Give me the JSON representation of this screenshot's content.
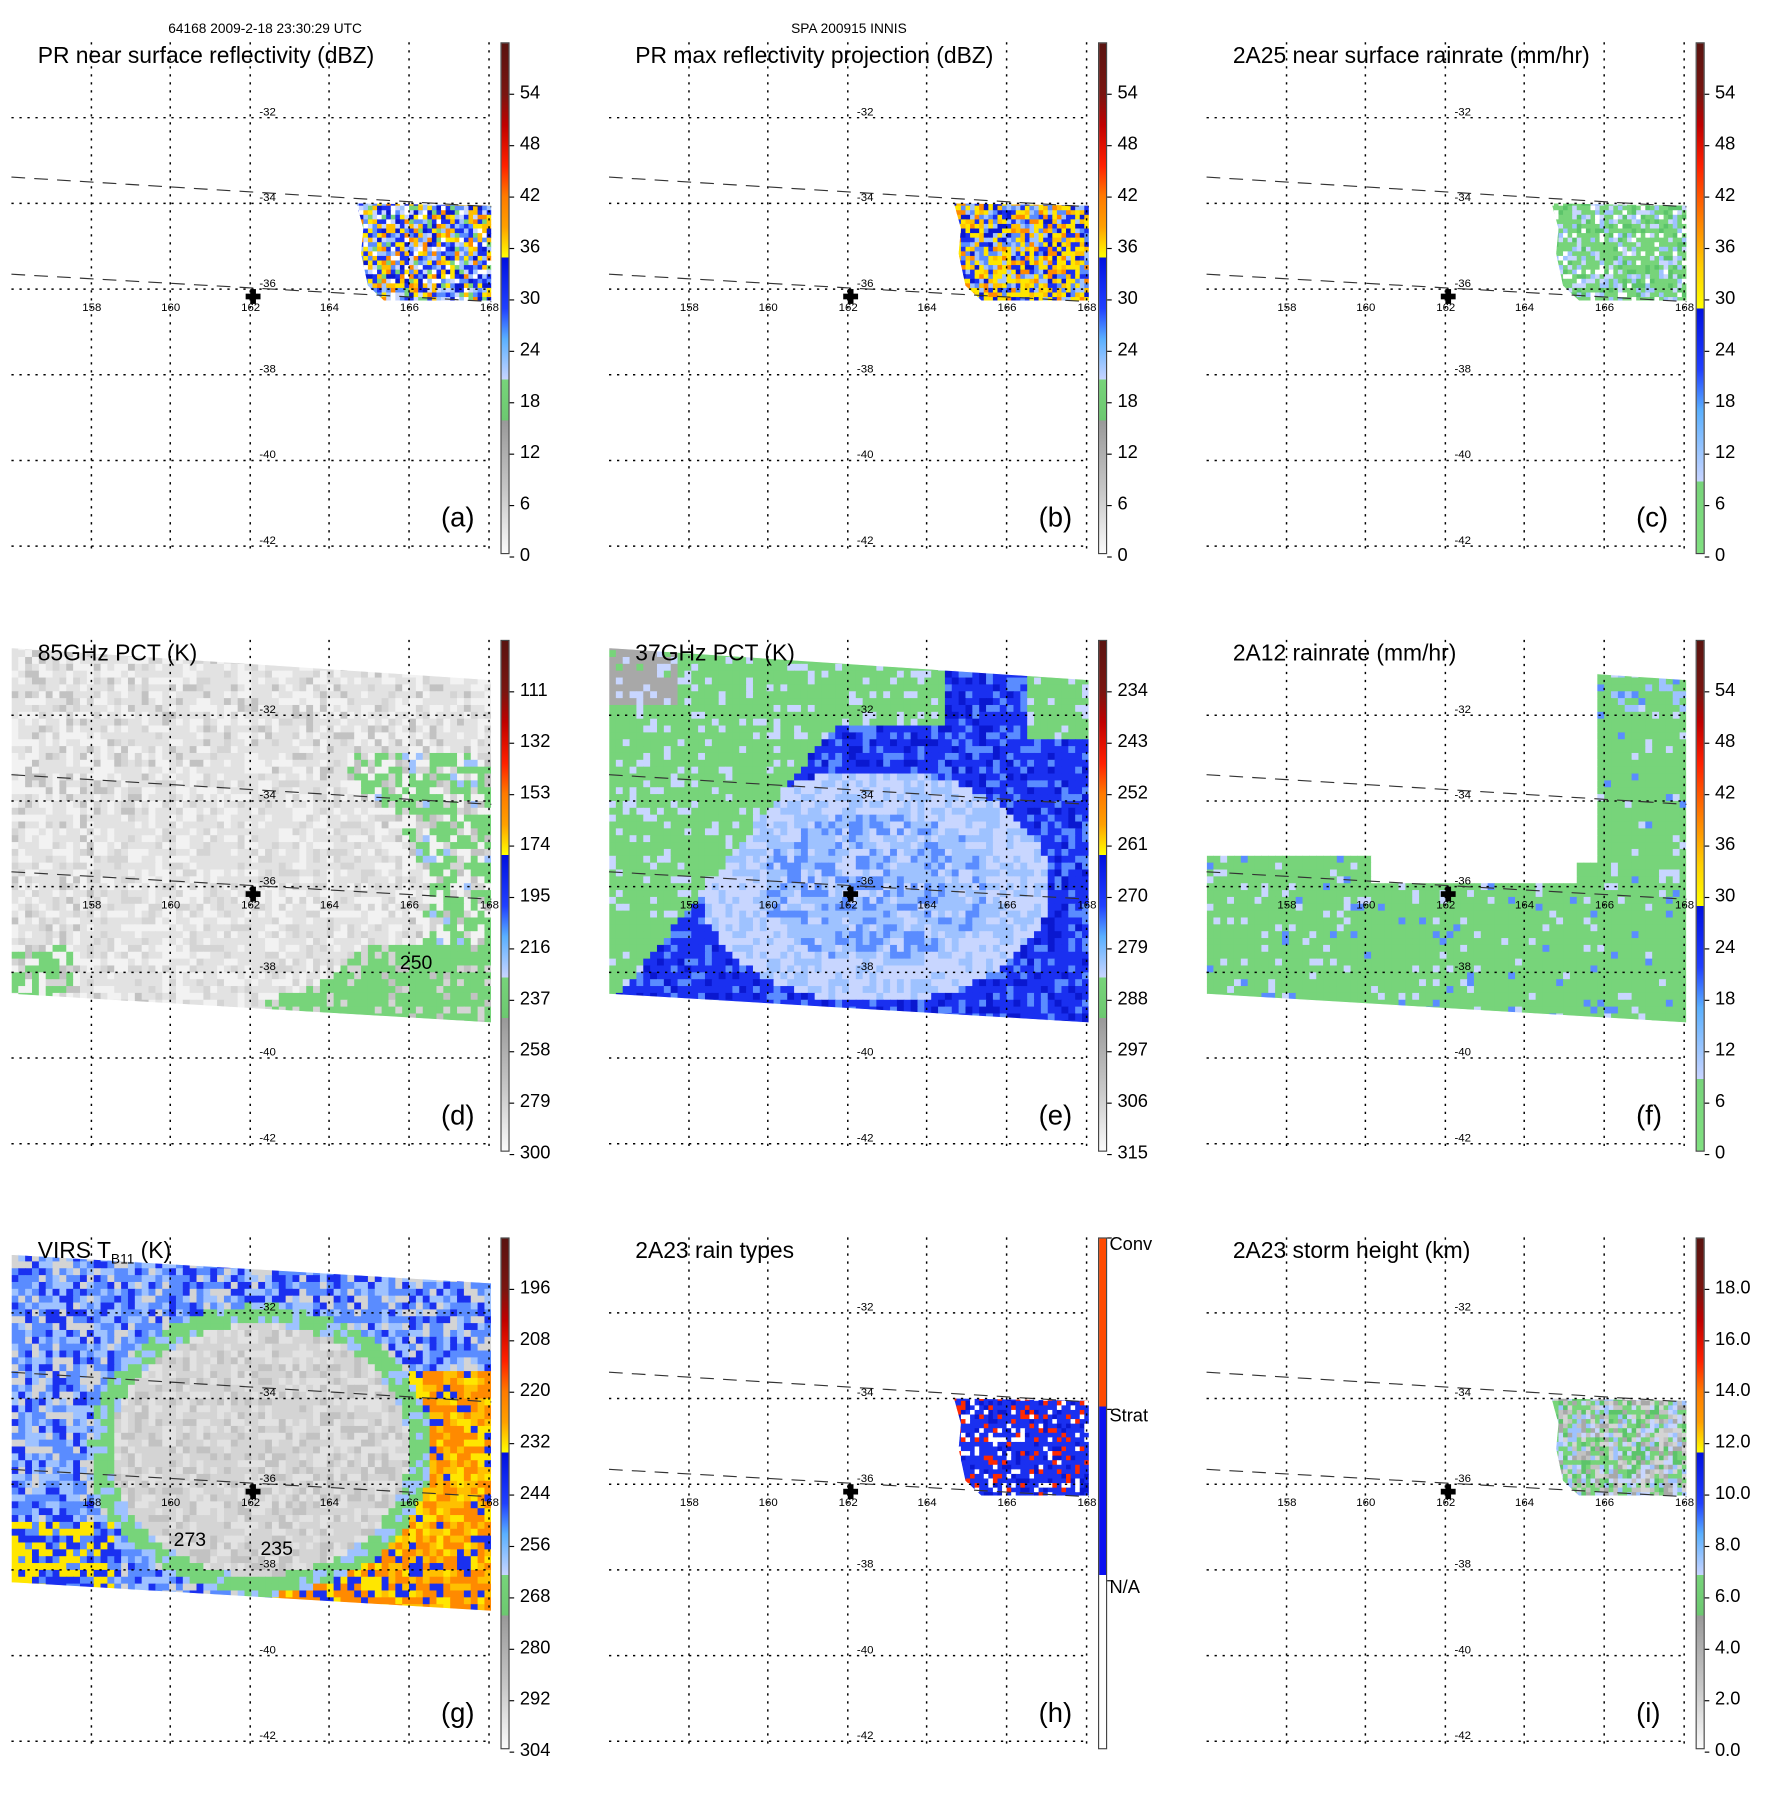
{
  "header": {
    "orbit_time": "64168 2009-2-18 23:30:29 UTC",
    "storm": "SPA 200915 INNIS"
  },
  "grid": {
    "lat_labels": [
      "-32",
      "-34",
      "-36",
      "-38",
      "-40",
      "-42"
    ],
    "lon_labels": [
      "158",
      "160",
      "162",
      "164",
      "166",
      "168"
    ]
  },
  "panels": [
    {
      "id": "a",
      "title": "PR near surface reflectivity (dBZ)",
      "letter": "(a)",
      "colorbar_labels": [
        "54",
        "48",
        "42",
        "36",
        "30",
        "24",
        "18",
        "12",
        "6",
        "0"
      ],
      "contour_labels": []
    },
    {
      "id": "b",
      "title": "PR max reflectivity projection (dBZ)",
      "letter": "(b)",
      "colorbar_labels": [
        "54",
        "48",
        "42",
        "36",
        "30",
        "24",
        "18",
        "12",
        "6",
        "0"
      ],
      "contour_labels": []
    },
    {
      "id": "c",
      "title": "2A25 near surface rainrate (mm/hr)",
      "letter": "(c)",
      "colorbar_labels": [
        "54",
        "48",
        "42",
        "36",
        "30",
        "24",
        "18",
        "12",
        "6",
        "0"
      ],
      "contour_labels": []
    },
    {
      "id": "d",
      "title": "85GHz PCT (K)",
      "letter": "(d)",
      "colorbar_labels": [
        "111",
        "132",
        "153",
        "174",
        "195",
        "216",
        "237",
        "258",
        "279",
        "300"
      ],
      "contour_labels": [
        "250"
      ]
    },
    {
      "id": "e",
      "title": "37GHz PCT (K)",
      "letter": "(e)",
      "colorbar_labels": [
        "234",
        "243",
        "252",
        "261",
        "270",
        "279",
        "288",
        "297",
        "306",
        "315"
      ],
      "contour_labels": []
    },
    {
      "id": "f",
      "title": "2A12 rainrate (mm/hr)",
      "letter": "(f)",
      "colorbar_labels": [
        "54",
        "48",
        "42",
        "36",
        "30",
        "24",
        "18",
        "12",
        "6",
        "0"
      ],
      "contour_labels": []
    },
    {
      "id": "g",
      "title": "VIRS T",
      "title_sub": "B11",
      "title_suffix": " (K)",
      "letter": "(g)",
      "colorbar_labels": [
        "196",
        "208",
        "220",
        "232",
        "244",
        "256",
        "268",
        "280",
        "292",
        "304"
      ],
      "contour_labels": [
        "273",
        "235"
      ]
    },
    {
      "id": "h",
      "title": "2A23 rain types",
      "letter": "(h)",
      "colorbar_labels": [
        "Conv",
        "Strat",
        "N/A"
      ],
      "contour_labels": []
    },
    {
      "id": "i",
      "title": "2A23 storm height (km)",
      "letter": "(i)",
      "colorbar_labels": [
        "18.0",
        "16.0",
        "14.0",
        "12.0",
        "10.0",
        "8.0",
        "6.0",
        "4.0",
        "2.0",
        "0.0"
      ],
      "contour_labels": []
    }
  ],
  "colors": {
    "green": "#77d47a",
    "blue": "#0a1fe0",
    "light_blue": "#9ec2ff",
    "yellow": "#ffe600",
    "orange": "#ff8a00",
    "red": "#e01000",
    "brown": "#5a1410"
  }
}
